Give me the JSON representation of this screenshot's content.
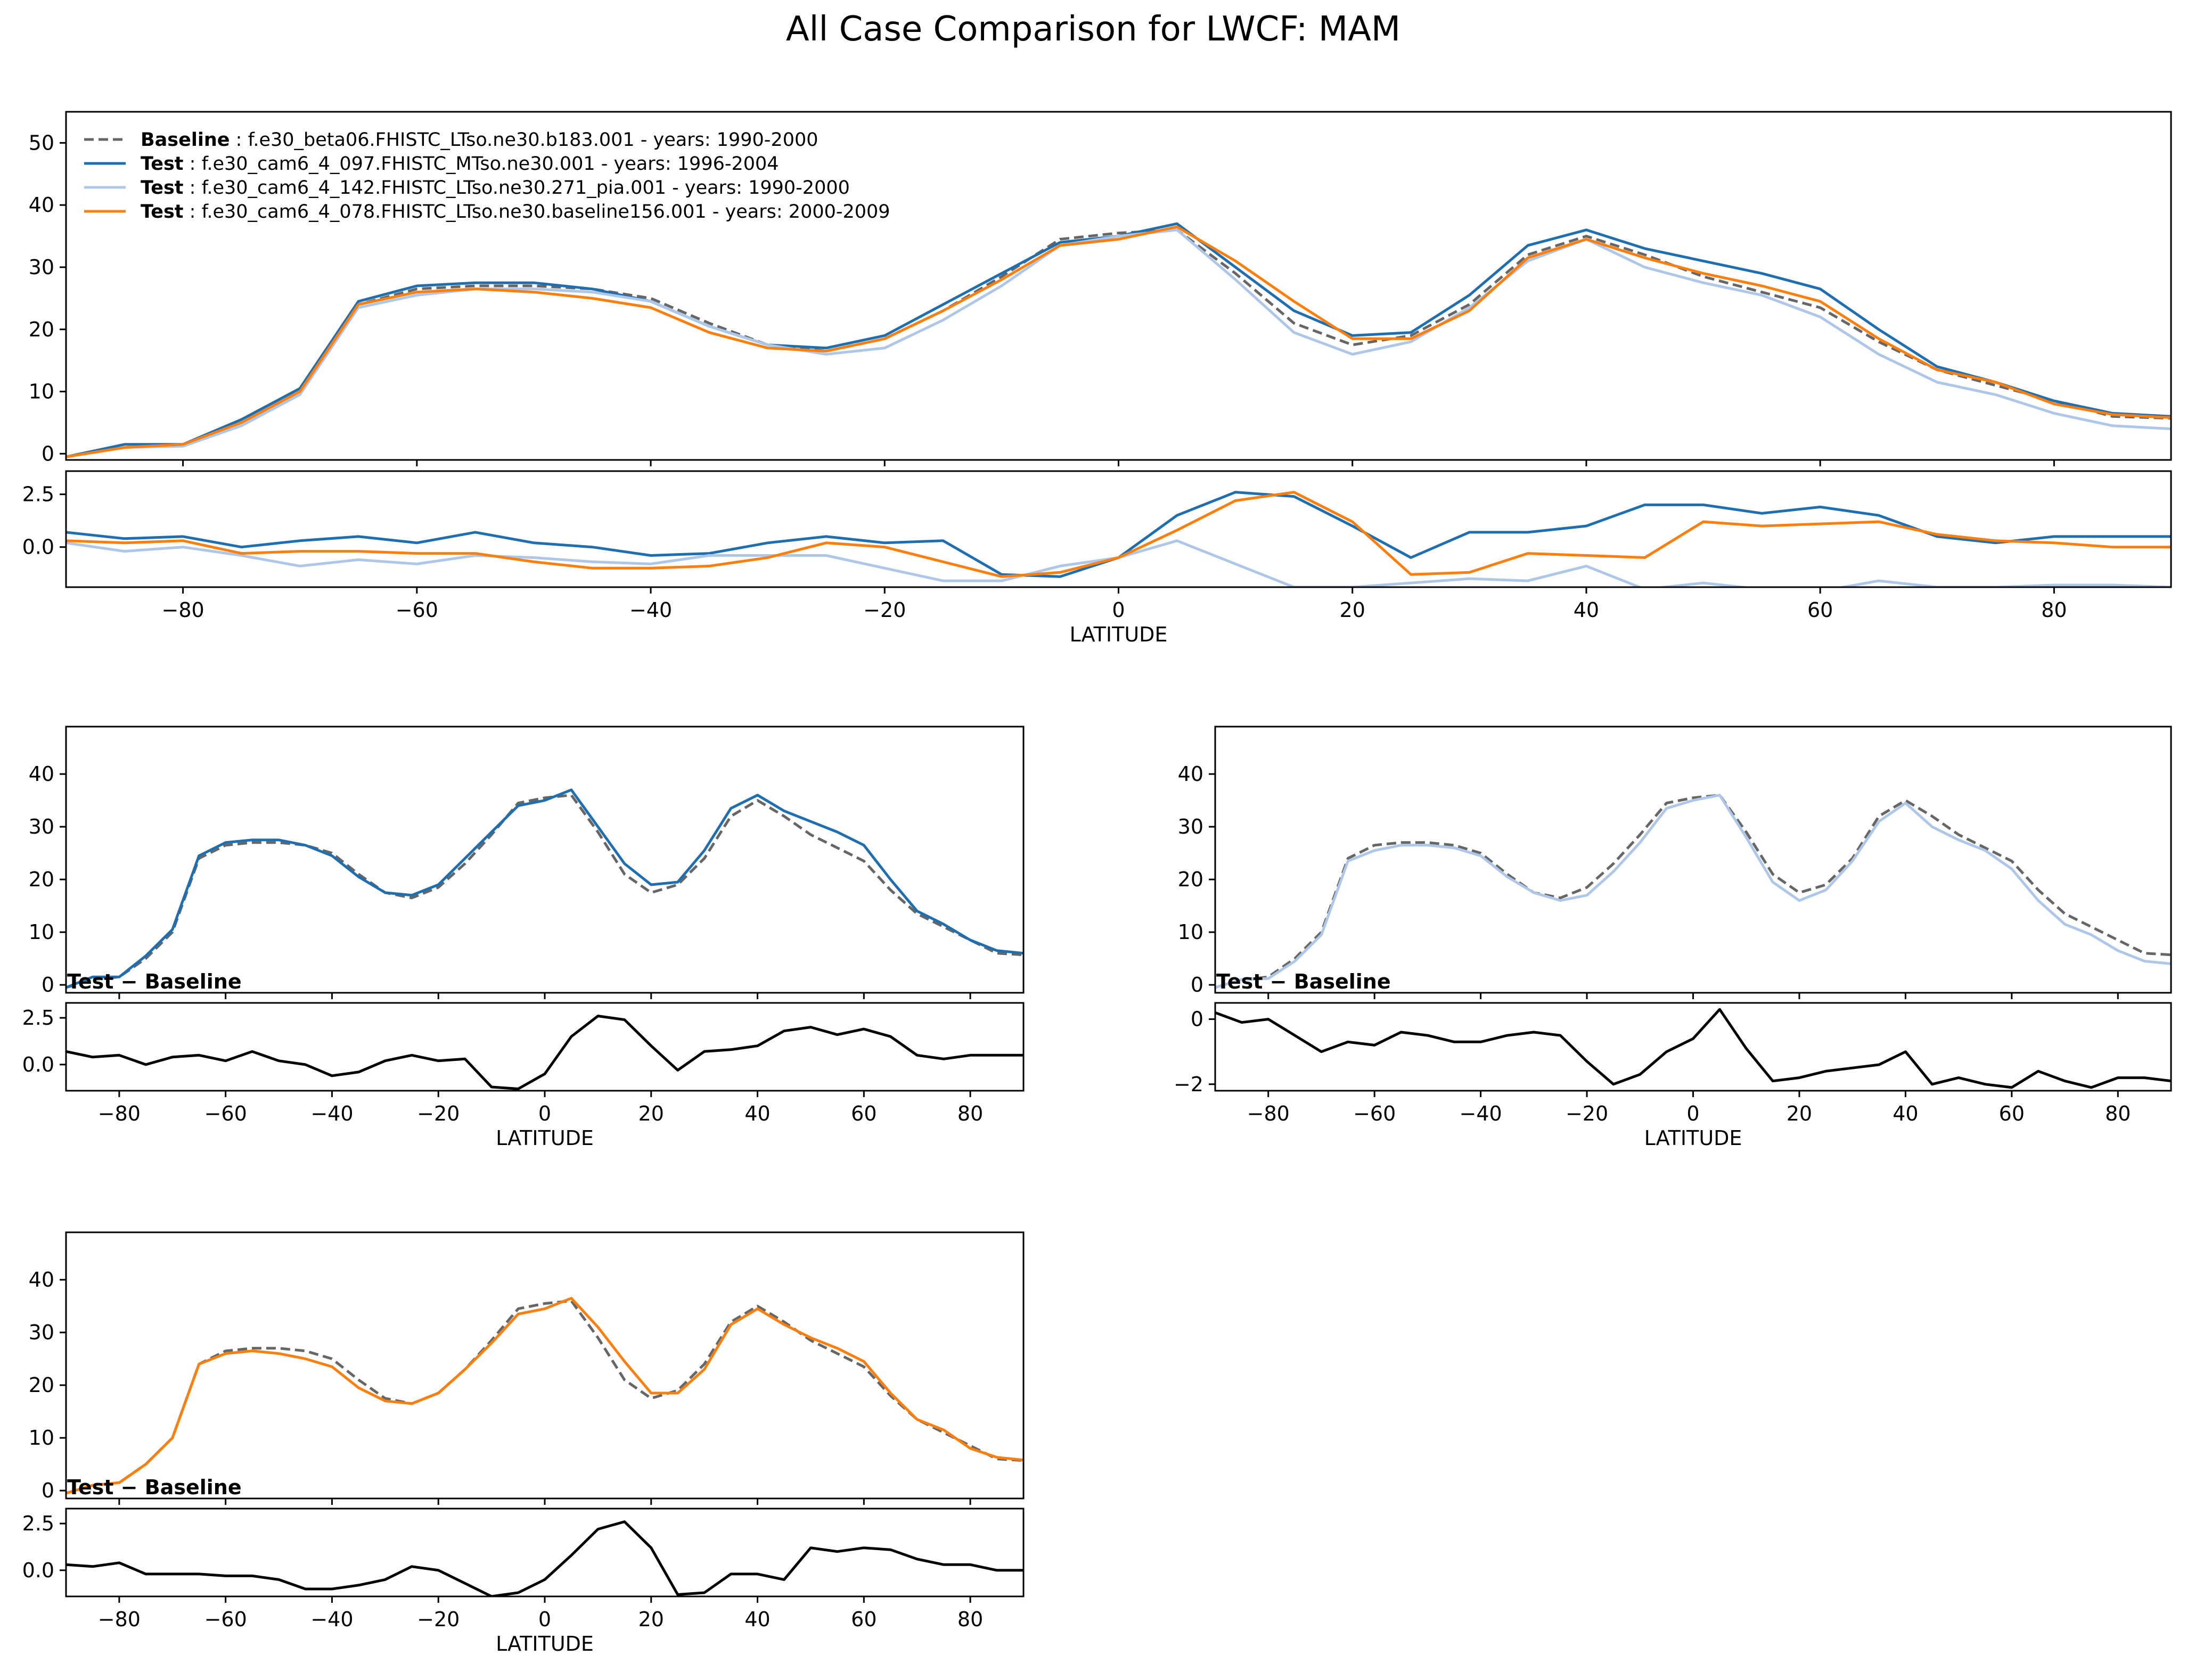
{
  "figure_title": "All Case Comparison for LWCF: MAM",
  "colors": {
    "baseline": "#666666",
    "test1": "#1f6fb0",
    "test2": "#aec7e8",
    "test3": "#ff7f0e",
    "diff": "#000000",
    "axis": "#000000"
  },
  "legend": [
    {
      "bold": "Baseline",
      "text": "f.e30_beta06.FHISTC_LTso.ne30.b183.001 - years: 1990-2000",
      "color": "#666666",
      "dashed": true
    },
    {
      "bold": "Test",
      "text": "f.e30_cam6_4_097.FHISTC_MTso.ne30.001 - years: 1996-2004",
      "color": "#1f6fb0",
      "dashed": false
    },
    {
      "bold": "Test",
      "text": "f.e30_cam6_4_142.FHISTC_LTso.ne30.271_pia.001 - years: 1990-2000",
      "color": "#aec7e8",
      "dashed": false
    },
    {
      "bold": "Test",
      "text": "f.e30_cam6_4_078.FHISTC_LTso.ne30.baseline156.001 - years: 2000-2009",
      "color": "#ff7f0e",
      "dashed": false
    }
  ],
  "diff_title_bold": "Test",
  "diff_title_rest": " − Baseline",
  "xlabel": "LATITUDE",
  "chart_data": {
    "type": "line",
    "title": "All Case Comparison for LWCF: MAM",
    "xlabel": "LATITUDE",
    "xlim": [
      -90,
      90
    ],
    "xticks": [
      -80,
      -60,
      -40,
      -20,
      0,
      20,
      40,
      60,
      80
    ],
    "x": [
      -90,
      -85,
      -80,
      -75,
      -70,
      -65,
      -60,
      -55,
      -50,
      -45,
      -40,
      -35,
      -30,
      -25,
      -20,
      -15,
      -10,
      -5,
      0,
      5,
      10,
      15,
      20,
      25,
      30,
      35,
      40,
      45,
      50,
      55,
      60,
      65,
      70,
      75,
      80,
      85,
      90
    ],
    "series": [
      {
        "name": "Baseline",
        "values": [
          -0.5,
          1,
          1.5,
          5,
          10,
          24,
          26.5,
          27,
          27,
          26.5,
          25,
          21,
          17.5,
          16.5,
          18.5,
          23,
          28.5,
          34.5,
          35.5,
          36,
          29,
          21,
          17.5,
          19,
          24,
          32,
          35,
          32,
          28.5,
          26,
          23.5,
          18,
          13.5,
          11,
          8.5,
          6,
          5.7
        ]
      },
      {
        "name": "Test 1",
        "values": [
          -0.5,
          1.5,
          1.5,
          5.5,
          10.5,
          24.5,
          27,
          27.5,
          27.5,
          26.5,
          24.5,
          20.5,
          17.5,
          17,
          19,
          24,
          29,
          34,
          35,
          37,
          30,
          23,
          19,
          19.5,
          25.5,
          33.5,
          36,
          33,
          31,
          29,
          26.5,
          20,
          14,
          11.5,
          8.5,
          6.5,
          6
        ]
      },
      {
        "name": "Test 2",
        "values": [
          -0.5,
          1,
          1.2,
          4.5,
          9.5,
          23.5,
          25.5,
          26.5,
          26.5,
          26,
          24.5,
          20.5,
          17.5,
          16,
          17,
          21.5,
          27,
          33.5,
          35,
          36,
          28,
          19.5,
          16,
          18,
          23.5,
          31,
          34.5,
          30,
          27.5,
          25.5,
          22,
          16,
          11.5,
          9.5,
          6.5,
          4.5,
          4
        ]
      },
      {
        "name": "Test 3",
        "values": [
          -0.5,
          1,
          1.5,
          5,
          10,
          24,
          26,
          26.5,
          26,
          25,
          23.5,
          19.5,
          17,
          16.5,
          18.5,
          23,
          28,
          33.5,
          34.5,
          36.5,
          31,
          24.5,
          18.5,
          18.5,
          23,
          31.5,
          34.5,
          31.5,
          29,
          27,
          24.5,
          18.5,
          13.5,
          11.5,
          8,
          6.3,
          5.8
        ]
      }
    ],
    "top_panel": {
      "ylim": [
        -1,
        55
      ],
      "yticks": [
        0,
        10,
        20,
        30,
        40,
        50
      ]
    },
    "top_diff_panel": {
      "ylim": [
        -1.9,
        3.6
      ],
      "yticks": [
        0.0,
        2.5
      ],
      "ytick_labels": [
        "0.0",
        "2.5"
      ],
      "differences": [
        {
          "name": "Test 1 − Baseline",
          "values": [
            0.7,
            0.4,
            0.5,
            0,
            0.3,
            0.5,
            0.2,
            0.7,
            0.2,
            0,
            -0.4,
            -0.3,
            0.2,
            0.5,
            0.2,
            0.3,
            -1.3,
            -1.4,
            -0.5,
            1.5,
            2.6,
            2.4,
            1,
            -0.5,
            0.7,
            0.7,
            1,
            2,
            2,
            1.6,
            1.9,
            1.5,
            0.5,
            0.2,
            0.5,
            0.5,
            0.5
          ]
        },
        {
          "name": "Test 2 − Baseline",
          "values": [
            0.2,
            -0.2,
            0,
            -0.4,
            -0.9,
            -0.6,
            -0.8,
            -0.4,
            -0.5,
            -0.7,
            -0.8,
            -0.4,
            -0.4,
            -0.4,
            -1,
            -1.6,
            -1.6,
            -0.9,
            -0.5,
            0.3,
            -0.8,
            -1.9,
            -1.9,
            -1.7,
            -1.5,
            -1.6,
            -0.9,
            -2,
            -1.7,
            -2,
            -2.1,
            -1.6,
            -1.9,
            -1.9,
            -1.8,
            -1.8,
            -1.9
          ]
        },
        {
          "name": "Test 3 − Baseline",
          "values": [
            0.3,
            0.2,
            0.3,
            -0.3,
            -0.2,
            -0.2,
            -0.3,
            -0.3,
            -0.7,
            -1,
            -1,
            -0.9,
            -0.5,
            0.2,
            0,
            -0.7,
            -1.4,
            -1.2,
            -0.5,
            0.8,
            2.2,
            2.6,
            1.2,
            -1.3,
            -1.2,
            -0.3,
            -0.4,
            -0.5,
            1.2,
            1,
            1.1,
            1.2,
            0.6,
            0.3,
            0.2,
            0,
            0
          ]
        }
      ]
    },
    "sub_panels": [
      {
        "series": "Test 1",
        "ylim": [
          -1.5,
          49
        ],
        "yticks": [
          0,
          10,
          20,
          30,
          40
        ],
        "diff": {
          "ylim": [
            -1.4,
            3.3
          ],
          "yticks": [
            0.0,
            2.5
          ],
          "ytick_labels": [
            "0.0",
            "2.5"
          ],
          "values": [
            0.7,
            0.4,
            0.5,
            0,
            0.4,
            0.5,
            0.2,
            0.7,
            0.2,
            0,
            -0.6,
            -0.4,
            0.2,
            0.5,
            0.2,
            0.3,
            -1.2,
            -1.3,
            -0.5,
            1.5,
            2.6,
            2.4,
            1,
            -0.3,
            0.7,
            0.8,
            1,
            1.8,
            2,
            1.6,
            1.9,
            1.5,
            0.5,
            0.3,
            0.5,
            0.5,
            0.5
          ]
        }
      },
      {
        "series": "Test 2",
        "ylim": [
          -1.5,
          49
        ],
        "yticks": [
          0,
          10,
          20,
          30,
          40
        ],
        "diff": {
          "ylim": [
            -2.2,
            0.5
          ],
          "yticks": [
            -2,
            0
          ],
          "ytick_labels": [
            "−2",
            "0"
          ],
          "values": [
            0.2,
            -0.1,
            0,
            -0.5,
            -1,
            -0.7,
            -0.8,
            -0.4,
            -0.5,
            -0.7,
            -0.7,
            -0.5,
            -0.4,
            -0.5,
            -1.3,
            -2,
            -1.7,
            -1,
            -0.6,
            0.3,
            -0.9,
            -1.9,
            -1.8,
            -1.6,
            -1.5,
            -1.4,
            -1,
            -2,
            -1.8,
            -2,
            -2.1,
            -1.6,
            -1.9,
            -2.1,
            -1.8,
            -1.8,
            -1.9
          ]
        }
      },
      {
        "series": "Test 3",
        "ylim": [
          -1.5,
          49
        ],
        "yticks": [
          0,
          10,
          20,
          30,
          40
        ],
        "diff": {
          "ylim": [
            -1.4,
            3.3
          ],
          "yticks": [
            0.0,
            2.5
          ],
          "ytick_labels": [
            "0.0",
            "2.5"
          ],
          "values": [
            0.3,
            0.2,
            0.4,
            -0.2,
            -0.2,
            -0.2,
            -0.3,
            -0.3,
            -0.5,
            -1,
            -1,
            -0.8,
            -0.5,
            0.2,
            0,
            -0.7,
            -1.4,
            -1.2,
            -0.5,
            0.8,
            2.2,
            2.6,
            1.2,
            -1.3,
            -1.2,
            -0.2,
            -0.2,
            -0.5,
            1.2,
            1,
            1.2,
            1.1,
            0.6,
            0.3,
            0.3,
            0,
            0
          ]
        }
      }
    ]
  }
}
